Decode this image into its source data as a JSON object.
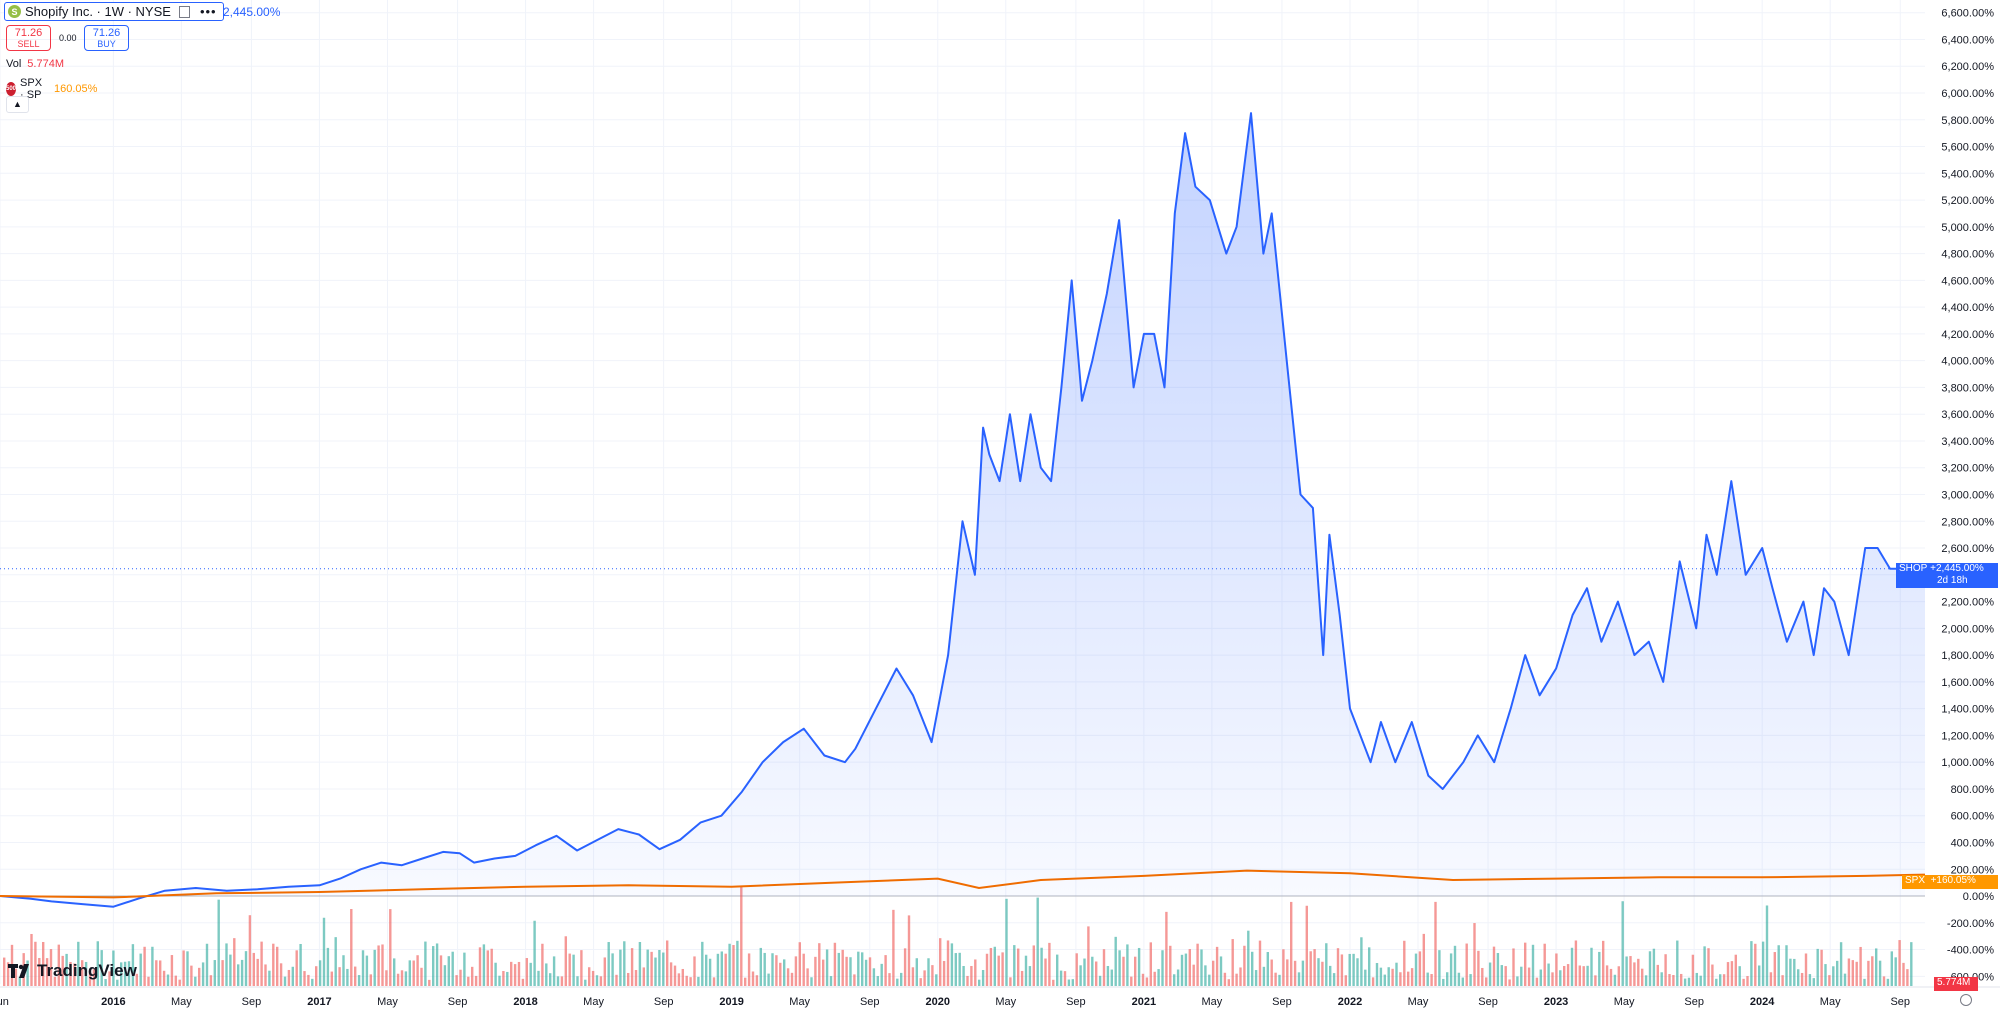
{
  "symbol": {
    "name": "Shopify Inc. · 1W · NYSE",
    "logo_letter": "S",
    "change_pct": "2,445.00%",
    "sell_price": "71.26",
    "sell_label": "SELL",
    "spread": "0.00",
    "buy_price": "71.26",
    "buy_label": "BUY"
  },
  "volume": {
    "label": "Vol",
    "value": "5.774M"
  },
  "compare": {
    "logo_text": "500",
    "label": "SPX · SP",
    "change_pct": "160.05%"
  },
  "branding": {
    "name": "TradingView"
  },
  "price_tags": {
    "shop_label": "SHOP",
    "shop_value": "+2,445.00%",
    "shop_countdown": "2d 18h",
    "spx_label": "SPX",
    "spx_value": "+160.05%",
    "vol_value": "5.774M"
  },
  "colors": {
    "shop_line": "#2962ff",
    "shop_fill": "#2962ff",
    "spx_line": "#ef6c00",
    "vol_up": "#26a69a",
    "vol_down": "#ef5350",
    "spx_tag": "#ff9800",
    "vol_tag": "#f23645"
  },
  "chart_data": {
    "type": "area",
    "title": "Shopify Inc. · 1W · NYSE",
    "y_unit": "%",
    "y_ticks": [
      "6,600.00%",
      "6,400.00%",
      "6,200.00%",
      "6,000.00%",
      "5,800.00%",
      "5,600.00%",
      "5,400.00%",
      "5,200.00%",
      "5,000.00%",
      "4,800.00%",
      "4,600.00%",
      "4,400.00%",
      "4,200.00%",
      "4,000.00%",
      "3,800.00%",
      "3,600.00%",
      "3,400.00%",
      "3,200.00%",
      "3,000.00%",
      "2,800.00%",
      "2,600.00%",
      "2,400.00%",
      "2,200.00%",
      "2,000.00%",
      "1,800.00%",
      "1,600.00%",
      "1,400.00%",
      "1,200.00%",
      "1,000.00%",
      "800.00%",
      "600.00%",
      "400.00%",
      "200.00%",
      "0.00%",
      "-200.00%",
      "-400.00%",
      "-600.00%"
    ],
    "y_tick_values": [
      6600,
      6400,
      6200,
      6000,
      5800,
      5600,
      5400,
      5200,
      5000,
      4800,
      4600,
      4400,
      4200,
      4000,
      3800,
      3600,
      3400,
      3200,
      3000,
      2800,
      2600,
      2400,
      2200,
      2000,
      1800,
      1600,
      1400,
      1200,
      1000,
      800,
      600,
      400,
      200,
      0,
      -200,
      -400,
      -600
    ],
    "x_ticks": [
      {
        "label": "Jun",
        "t": 2015.45,
        "bold": false
      },
      {
        "label": "2016",
        "t": 2016.0,
        "bold": true
      },
      {
        "label": "May",
        "t": 2016.33,
        "bold": false
      },
      {
        "label": "Sep",
        "t": 2016.67,
        "bold": false
      },
      {
        "label": "2017",
        "t": 2017.0,
        "bold": true
      },
      {
        "label": "May",
        "t": 2017.33,
        "bold": false
      },
      {
        "label": "Sep",
        "t": 2017.67,
        "bold": false
      },
      {
        "label": "2018",
        "t": 2018.0,
        "bold": true
      },
      {
        "label": "May",
        "t": 2018.33,
        "bold": false
      },
      {
        "label": "Sep",
        "t": 2018.67,
        "bold": false
      },
      {
        "label": "2019",
        "t": 2019.0,
        "bold": true
      },
      {
        "label": "May",
        "t": 2019.33,
        "bold": false
      },
      {
        "label": "Sep",
        "t": 2019.67,
        "bold": false
      },
      {
        "label": "2020",
        "t": 2020.0,
        "bold": true
      },
      {
        "label": "May",
        "t": 2020.33,
        "bold": false
      },
      {
        "label": "Sep",
        "t": 2020.67,
        "bold": false
      },
      {
        "label": "2021",
        "t": 2021.0,
        "bold": true
      },
      {
        "label": "May",
        "t": 2021.33,
        "bold": false
      },
      {
        "label": "Sep",
        "t": 2021.67,
        "bold": false
      },
      {
        "label": "2022",
        "t": 2022.0,
        "bold": true
      },
      {
        "label": "May",
        "t": 2022.33,
        "bold": false
      },
      {
        "label": "Sep",
        "t": 2022.67,
        "bold": false
      },
      {
        "label": "2023",
        "t": 2023.0,
        "bold": true
      },
      {
        "label": "May",
        "t": 2023.33,
        "bold": false
      },
      {
        "label": "Sep",
        "t": 2023.67,
        "bold": false
      },
      {
        "label": "2024",
        "t": 2024.0,
        "bold": true
      },
      {
        "label": "May",
        "t": 2024.33,
        "bold": false
      },
      {
        "label": "Sep",
        "t": 2024.67,
        "bold": false
      }
    ],
    "x_range": [
      2015.45,
      2024.79
    ],
    "y_range": [
      -620,
      6650
    ],
    "series": [
      {
        "name": "SHOP",
        "x": [
          2015.45,
          2015.6,
          2015.7,
          2015.85,
          2016.0,
          2016.12,
          2016.25,
          2016.4,
          2016.55,
          2016.7,
          2016.85,
          2017.0,
          2017.1,
          2017.2,
          2017.3,
          2017.4,
          2017.5,
          2017.6,
          2017.68,
          2017.75,
          2017.85,
          2017.95,
          2018.05,
          2018.15,
          2018.25,
          2018.35,
          2018.45,
          2018.55,
          2018.65,
          2018.75,
          2018.85,
          2018.95,
          2019.05,
          2019.15,
          2019.25,
          2019.35,
          2019.45,
          2019.55,
          2019.6,
          2019.7,
          2019.8,
          2019.88,
          2019.97,
          2020.05,
          2020.12,
          2020.18,
          2020.22,
          2020.25,
          2020.3,
          2020.35,
          2020.4,
          2020.45,
          2020.5,
          2020.55,
          2020.6,
          2020.65,
          2020.7,
          2020.75,
          2020.82,
          2020.88,
          2020.95,
          2021.0,
          2021.05,
          2021.1,
          2021.15,
          2021.2,
          2021.25,
          2021.32,
          2021.4,
          2021.45,
          2021.52,
          2021.58,
          2021.62,
          2021.7,
          2021.76,
          2021.82,
          2021.87,
          2021.9,
          2021.95,
          2022.0,
          2022.05,
          2022.1,
          2022.15,
          2022.22,
          2022.3,
          2022.38,
          2022.45,
          2022.55,
          2022.62,
          2022.7,
          2022.78,
          2022.85,
          2022.92,
          2023.0,
          2023.08,
          2023.15,
          2023.22,
          2023.3,
          2023.38,
          2023.45,
          2023.52,
          2023.6,
          2023.68,
          2023.73,
          2023.78,
          2023.85,
          2023.92,
          2024.0,
          2024.05,
          2024.12,
          2024.2,
          2024.25,
          2024.3,
          2024.35,
          2024.42,
          2024.5,
          2024.56,
          2024.62,
          2024.67,
          2024.72,
          2024.79
        ],
        "y": [
          0,
          -20,
          -40,
          -60,
          -80,
          -20,
          40,
          60,
          40,
          50,
          70,
          80,
          130,
          200,
          250,
          230,
          280,
          330,
          320,
          250,
          280,
          300,
          380,
          450,
          340,
          420,
          500,
          460,
          350,
          420,
          550,
          600,
          780,
          1000,
          1150,
          1250,
          1050,
          1000,
          1100,
          1400,
          1700,
          1500,
          1150,
          1800,
          2800,
          2400,
          3500,
          3300,
          3100,
          3600,
          3100,
          3600,
          3200,
          3100,
          3800,
          4600,
          3700,
          4000,
          4500,
          5050,
          3800,
          4200,
          4200,
          3800,
          5100,
          5700,
          5300,
          5200,
          4800,
          5000,
          5850,
          4800,
          5100,
          3900,
          3000,
          2900,
          1800,
          2700,
          2100,
          1400,
          1200,
          1000,
          1300,
          1000,
          1300,
          900,
          800,
          1000,
          1200,
          1000,
          1400,
          1800,
          1500,
          1700,
          2100,
          2300,
          1900,
          2200,
          1800,
          1900,
          1600,
          2500,
          2000,
          2700,
          2400,
          3100,
          2400,
          2600,
          2300,
          1900,
          2200,
          1800,
          2300,
          2200,
          1800,
          2600,
          2600,
          2445,
          2445,
          2445,
          2445
        ],
        "last_value": 2445
      },
      {
        "name": "SPX",
        "x": [
          2015.45,
          2016.0,
          2016.5,
          2017.0,
          2017.5,
          2018.0,
          2018.5,
          2019.0,
          2019.5,
          2020.0,
          2020.2,
          2020.5,
          2021.0,
          2021.5,
          2022.0,
          2022.5,
          2023.0,
          2023.5,
          2024.0,
          2024.5,
          2024.79
        ],
        "y": [
          0,
          -10,
          20,
          30,
          50,
          70,
          80,
          70,
          100,
          130,
          60,
          120,
          150,
          190,
          170,
          120,
          130,
          140,
          140,
          150,
          160
        ],
        "last_value": 160.05
      }
    ],
    "volume_series": {
      "name": "Vol",
      "last_value": "5.774M",
      "pattern": "weekly volume bars (green up / red down) along the bottom of the pane"
    }
  }
}
